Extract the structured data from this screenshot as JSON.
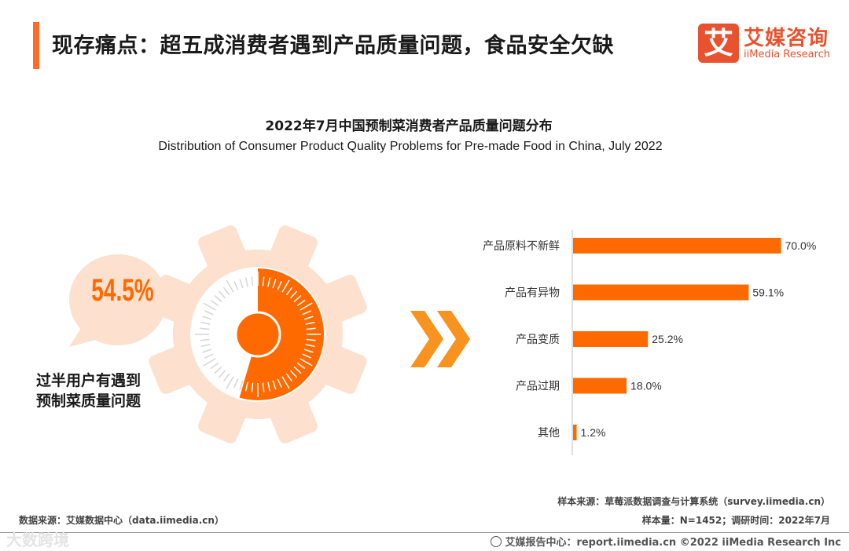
{
  "header": {
    "title": "现存痛点：超五成消费者遇到产品质量问题，食品安全欠缺",
    "accent_color": "#ff6a2b"
  },
  "logo": {
    "mark": "艾",
    "cn": "艾媒咨询",
    "en": "iiMedia Research",
    "color": "#e8522e"
  },
  "chart": {
    "title_cn": "2022年7月中国预制菜消费者产品质量问题分布",
    "title_en": "Distribution of Consumer Product Quality Problems for Pre-made Food in China, July 2022"
  },
  "highlight": {
    "value": "54.5%",
    "share": 0.545,
    "caption_line1": "过半用户有遇到",
    "caption_line2": "预制菜质量问题"
  },
  "chart_data": {
    "type": "bar",
    "orientation": "horizontal",
    "categories": [
      "产品原料不新鲜",
      "产品有异物",
      "产品变质",
      "产品过期",
      "其他"
    ],
    "values": [
      70.0,
      59.1,
      25.2,
      18.0,
      1.2
    ],
    "labels": [
      "70.0%",
      "59.1%",
      "25.2%",
      "18.0%",
      "1.2%"
    ],
    "unit": "%",
    "title": "2022年7月中国预制菜消费者产品质量问题分布",
    "xlabel": "",
    "ylabel": "",
    "xlim": [
      0,
      100
    ],
    "grid": false,
    "bar_color": "#ff6a00"
  },
  "sources": {
    "data_source": "数据来源：艾媒数据中心（data.iimedia.cn）",
    "sample_source": "样本来源：草莓派数据调查与计算系统（survey.iimedia.cn）",
    "sample_info": "样本量：N=1452；调研时间：2022年7月"
  },
  "footer": {
    "text": "艾媒报告中心：report.iimedia.cn  ©2022  iiMedia Research  Inc",
    "icon": "globe-icon",
    "watermark": "大数跨境"
  }
}
